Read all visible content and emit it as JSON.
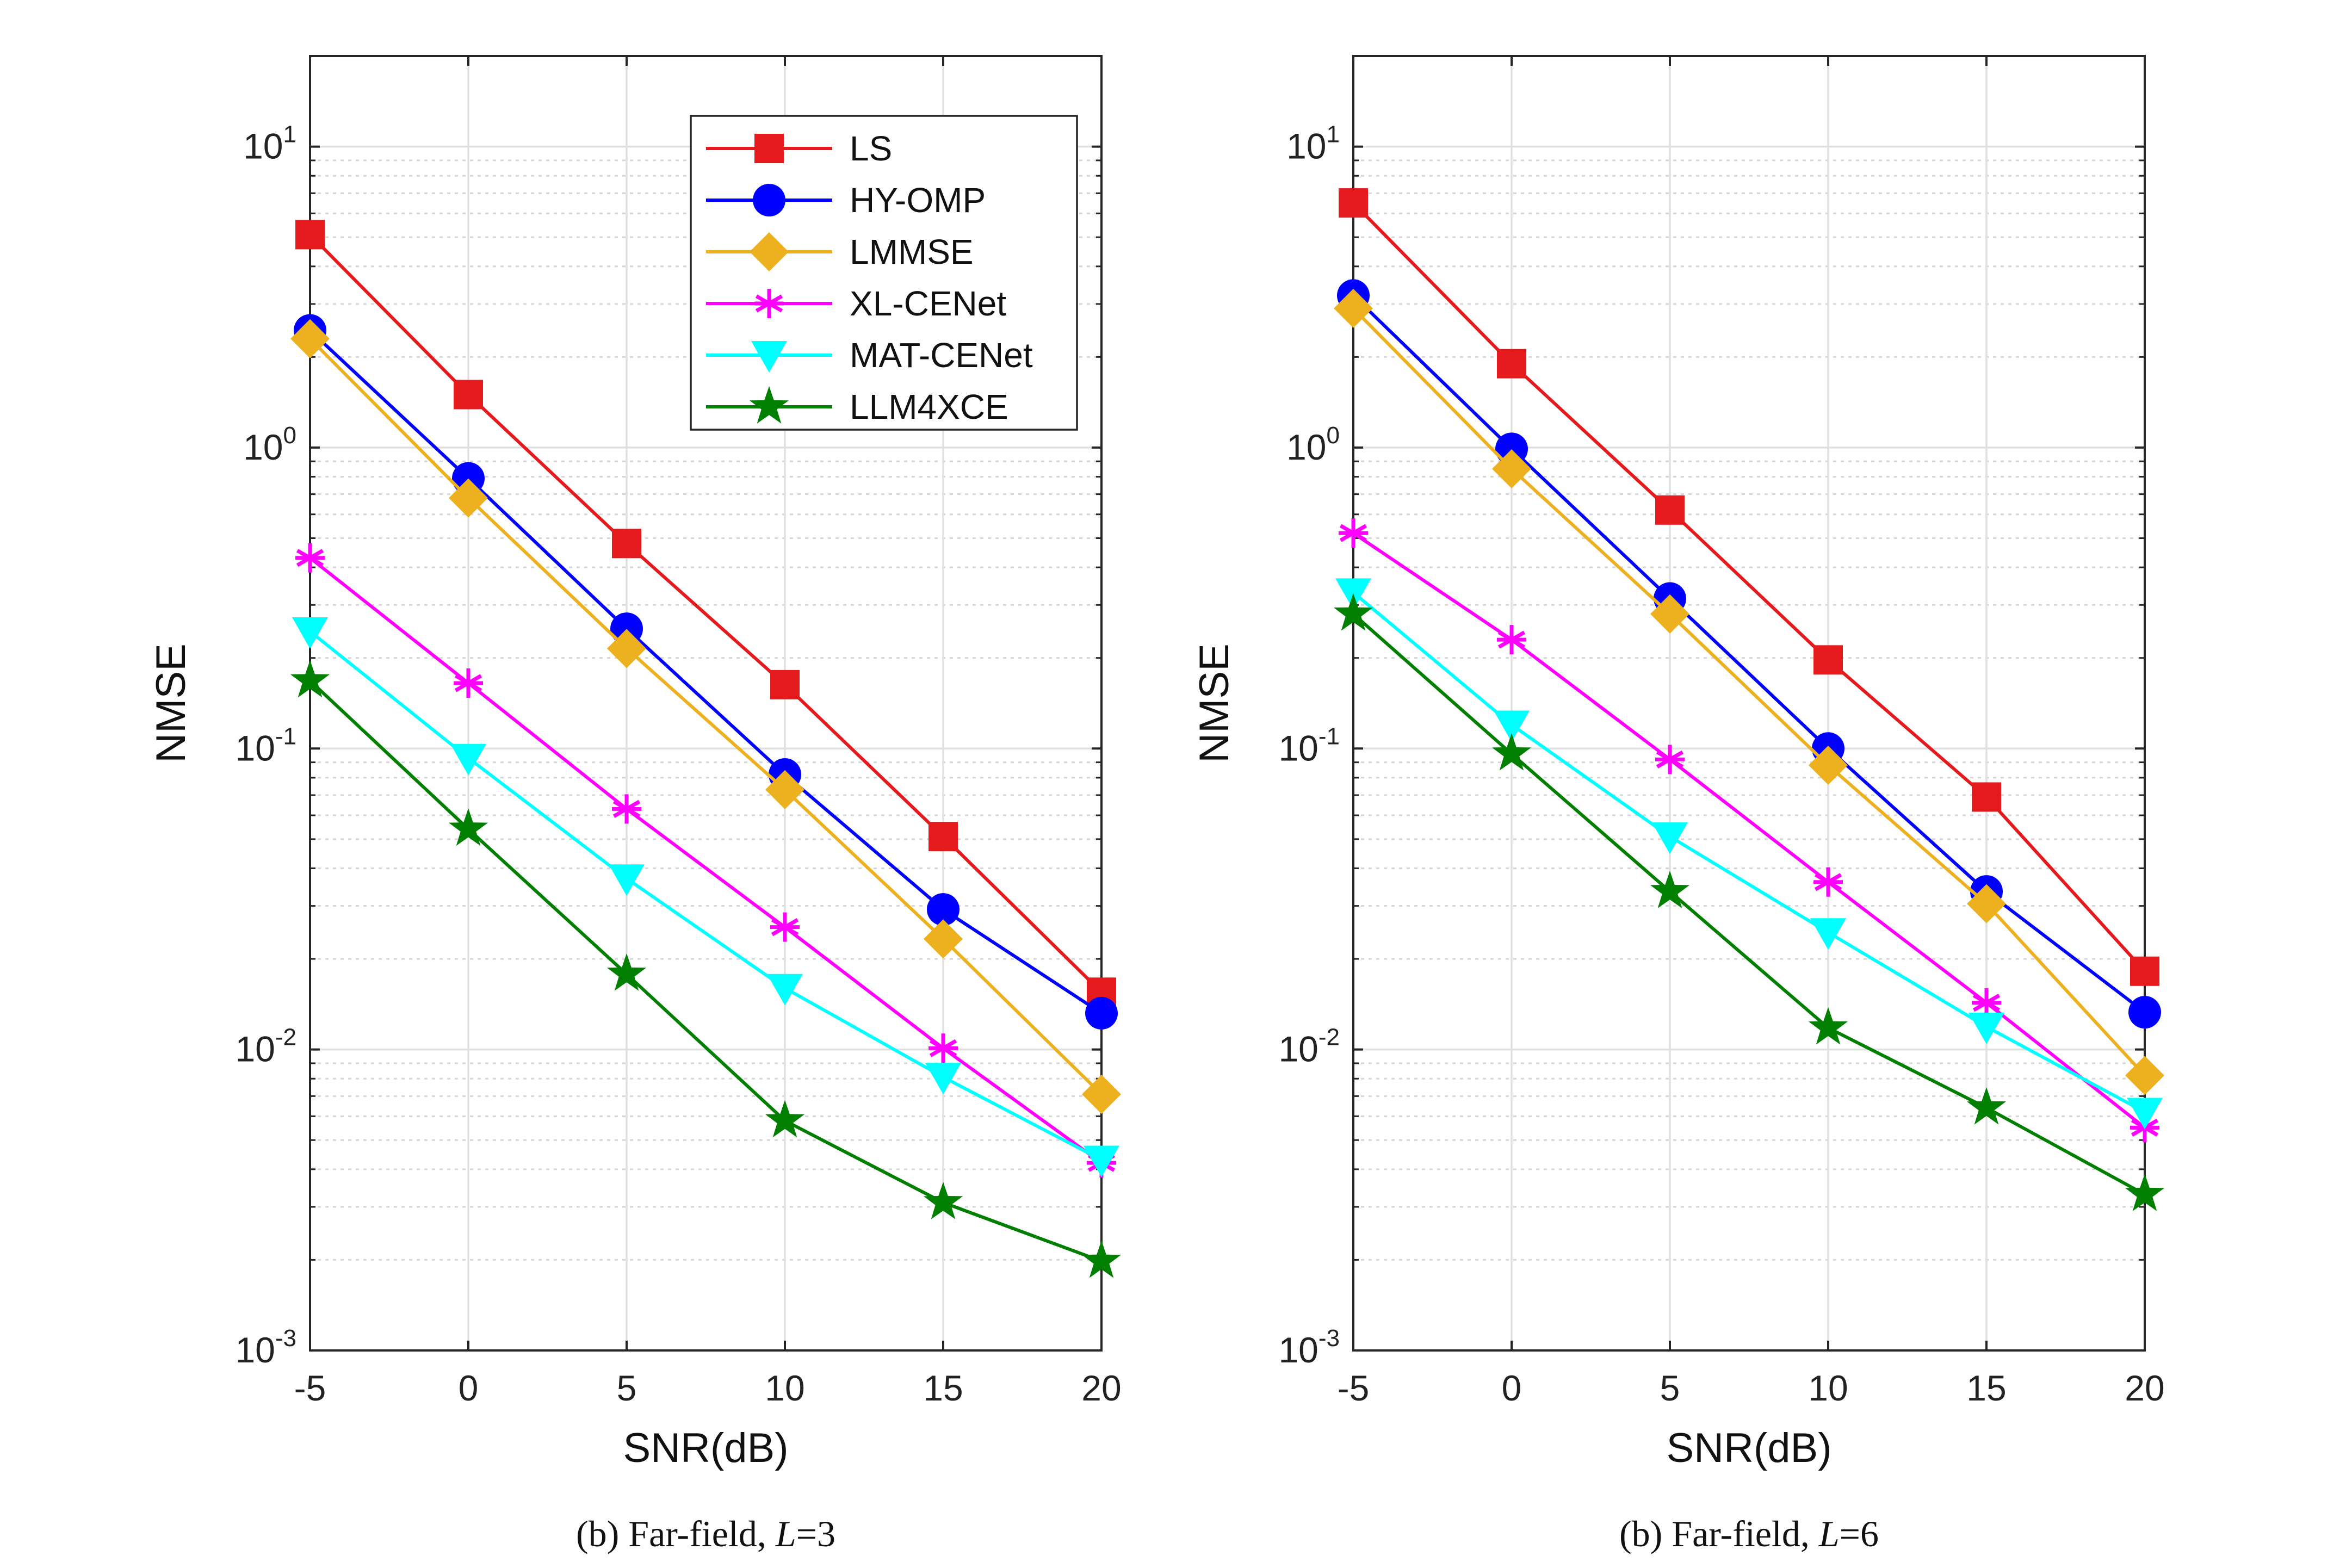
{
  "chart_data": [
    {
      "type": "line",
      "caption": {
        "prefix": "(b) Far-field, ",
        "var": "L",
        "suffix": "=3"
      },
      "xlabel": "SNR(dB)",
      "ylabel": "NMSE",
      "y_scale": "log",
      "xlim": [
        -5,
        20
      ],
      "ylim": [
        0.001,
        20
      ],
      "x_ticks": [
        "-5",
        "0",
        "5",
        "10",
        "15",
        "20"
      ],
      "y_ticks": [
        {
          "base": "10",
          "exp": "-3"
        },
        {
          "base": "10",
          "exp": "-2"
        },
        {
          "base": "10",
          "exp": "-1"
        },
        {
          "base": "10",
          "exp": "0"
        },
        {
          "base": "10",
          "exp": "1"
        }
      ],
      "grid": true,
      "legend_position": "top-right",
      "x": [
        -5,
        0,
        5,
        10,
        15,
        20
      ],
      "series": [
        {
          "name": "LS",
          "color": "#e41a1c",
          "marker": "square",
          "values": [
            5.1,
            1.5,
            0.48,
            0.163,
            0.051,
            0.0155
          ]
        },
        {
          "name": "HY-OMP",
          "color": "#0000ff",
          "marker": "circle",
          "values": [
            2.45,
            0.79,
            0.25,
            0.082,
            0.0292,
            0.0132
          ]
        },
        {
          "name": "LMMSE",
          "color": "#edb120",
          "marker": "diamond",
          "values": [
            2.3,
            0.68,
            0.215,
            0.073,
            0.0233,
            0.0071
          ]
        },
        {
          "name": "XL-CENet",
          "color": "#ff00ff",
          "marker": "asterisk",
          "values": [
            0.43,
            0.165,
            0.063,
            0.0255,
            0.0101,
            0.0042
          ]
        },
        {
          "name": "MAT-CENet",
          "color": "#00ffff",
          "marker": "triangle-down",
          "values": [
            0.245,
            0.093,
            0.037,
            0.016,
            0.0081,
            0.0043
          ]
        },
        {
          "name": "LLM4XCE",
          "color": "#007f00",
          "marker": "star",
          "values": [
            0.168,
            0.054,
            0.0178,
            0.0058,
            0.0031,
            0.00198
          ]
        }
      ]
    },
    {
      "type": "line",
      "caption": {
        "prefix": "(b) Far-field, ",
        "var": "L",
        "suffix": "=6"
      },
      "xlabel": "SNR(dB)",
      "ylabel": "NMSE",
      "y_scale": "log",
      "xlim": [
        -5,
        20
      ],
      "ylim": [
        0.001,
        20
      ],
      "x_ticks": [
        "-5",
        "0",
        "5",
        "10",
        "15",
        "20"
      ],
      "y_ticks": [
        {
          "base": "10",
          "exp": "-3"
        },
        {
          "base": "10",
          "exp": "-2"
        },
        {
          "base": "10",
          "exp": "-1"
        },
        {
          "base": "10",
          "exp": "0"
        },
        {
          "base": "10",
          "exp": "1"
        }
      ],
      "grid": true,
      "x": [
        -5,
        0,
        5,
        10,
        15,
        20
      ],
      "series": [
        {
          "name": "LS",
          "color": "#e41a1c",
          "marker": "square",
          "values": [
            6.5,
            1.9,
            0.62,
            0.197,
            0.069,
            0.0182
          ]
        },
        {
          "name": "HY-OMP",
          "color": "#0000ff",
          "marker": "circle",
          "values": [
            3.2,
            0.99,
            0.315,
            0.1,
            0.0335,
            0.0133
          ]
        },
        {
          "name": "LMMSE",
          "color": "#edb120",
          "marker": "diamond",
          "values": [
            2.9,
            0.85,
            0.28,
            0.088,
            0.0305,
            0.0082
          ]
        },
        {
          "name": "XL-CENet",
          "color": "#ff00ff",
          "marker": "asterisk",
          "values": [
            0.52,
            0.23,
            0.092,
            0.036,
            0.0143,
            0.0055
          ]
        },
        {
          "name": "MAT-CENet",
          "color": "#00ffff",
          "marker": "triangle-down",
          "values": [
            0.33,
            0.12,
            0.051,
            0.0245,
            0.0119,
            0.0062
          ]
        },
        {
          "name": "LLM4XCE",
          "color": "#007f00",
          "marker": "star",
          "values": [
            0.28,
            0.096,
            0.0335,
            0.0118,
            0.0064,
            0.0033
          ]
        }
      ]
    }
  ]
}
